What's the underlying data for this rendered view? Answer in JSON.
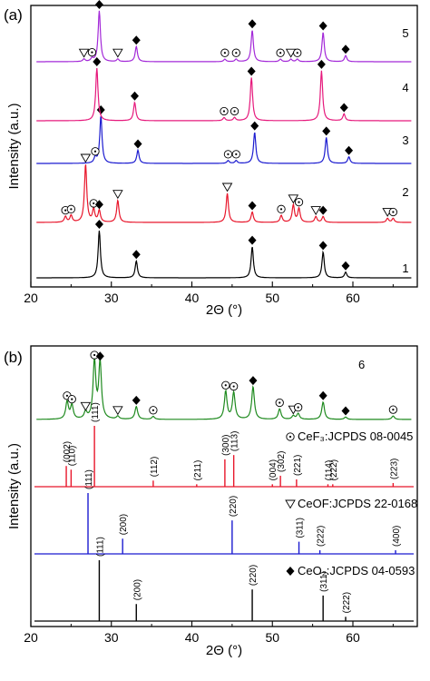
{
  "chart_data": [
    {
      "panel_label": "(a)",
      "type": "line",
      "xlabel": "2Θ (°)",
      "ylabel": "Intensity (a.u.)",
      "xlim": [
        20,
        68
      ],
      "x_ticks": [
        20,
        30,
        40,
        50,
        60
      ],
      "series": [
        {
          "name": "1",
          "color": "#000000",
          "peaks": [
            {
              "x": 28.5,
              "h": 1.0,
              "marker": "diamond"
            },
            {
              "x": 33.1,
              "h": 0.36,
              "marker": "diamond"
            },
            {
              "x": 47.5,
              "h": 0.66,
              "marker": "diamond"
            },
            {
              "x": 56.3,
              "h": 0.55,
              "marker": "diamond"
            },
            {
              "x": 59.1,
              "h": 0.12,
              "marker": "diamond"
            }
          ]
        },
        {
          "name": "2",
          "color": "#e8162b",
          "peaks": [
            {
              "x": 24.3,
              "h": 0.1,
              "marker": "circle-dot"
            },
            {
              "x": 25.0,
              "h": 0.12,
              "marker": "circle-dot"
            },
            {
              "x": 26.8,
              "h": 1.0,
              "marker": "triangle"
            },
            {
              "x": 27.8,
              "h": 0.22,
              "marker": "circle-dot"
            },
            {
              "x": 28.5,
              "h": 0.2,
              "marker": "diamond"
            },
            {
              "x": 30.8,
              "h": 0.38,
              "marker": "triangle"
            },
            {
              "x": 44.4,
              "h": 0.5,
              "marker": "triangle"
            },
            {
              "x": 47.5,
              "h": 0.18,
              "marker": "diamond"
            },
            {
              "x": 51.1,
              "h": 0.12,
              "marker": "circle-dot"
            },
            {
              "x": 52.6,
              "h": 0.3,
              "marker": "triangle"
            },
            {
              "x": 53.3,
              "h": 0.24,
              "marker": "circle-dot"
            },
            {
              "x": 55.4,
              "h": 0.1,
              "marker": "triangle"
            },
            {
              "x": 56.3,
              "h": 0.1,
              "marker": "diamond"
            },
            {
              "x": 64.3,
              "h": 0.07,
              "marker": "triangle"
            },
            {
              "x": 65.0,
              "h": 0.07,
              "marker": "circle-dot"
            }
          ]
        },
        {
          "name": "3",
          "color": "#1b1bd0",
          "peaks": [
            {
              "x": 28.0,
              "h": 0.12,
              "marker": "circle-dot"
            },
            {
              "x": 28.7,
              "h": 1.0,
              "marker": "diamond"
            },
            {
              "x": 33.3,
              "h": 0.28,
              "marker": "diamond"
            },
            {
              "x": 44.5,
              "h": 0.06,
              "marker": "circle-dot"
            },
            {
              "x": 45.5,
              "h": 0.06,
              "marker": "circle-dot"
            },
            {
              "x": 47.8,
              "h": 0.66,
              "marker": "diamond"
            },
            {
              "x": 56.7,
              "h": 0.55,
              "marker": "diamond"
            },
            {
              "x": 59.5,
              "h": 0.14,
              "marker": "diamond"
            }
          ]
        },
        {
          "name": "4",
          "color": "#e6197c",
          "peaks": [
            {
              "x": 28.2,
              "h": 1.0,
              "marker": "diamond"
            },
            {
              "x": 32.9,
              "h": 0.35,
              "marker": "diamond"
            },
            {
              "x": 44.0,
              "h": 0.06,
              "marker": "circle-dot"
            },
            {
              "x": 45.3,
              "h": 0.06,
              "marker": "circle-dot"
            },
            {
              "x": 47.4,
              "h": 0.82,
              "marker": "diamond"
            },
            {
              "x": 56.1,
              "h": 0.95,
              "marker": "diamond"
            },
            {
              "x": 58.9,
              "h": 0.13,
              "marker": "diamond"
            }
          ]
        },
        {
          "name": "5",
          "color": "#a329d8",
          "peaks": [
            {
              "x": 26.6,
              "h": 0.05,
              "marker": "triangle"
            },
            {
              "x": 27.6,
              "h": 0.06,
              "marker": "circle-dot"
            },
            {
              "x": 28.5,
              "h": 1.0,
              "marker": "diamond"
            },
            {
              "x": 30.8,
              "h": 0.05,
              "marker": "triangle"
            },
            {
              "x": 33.1,
              "h": 0.3,
              "marker": "diamond"
            },
            {
              "x": 44.1,
              "h": 0.05,
              "marker": "circle-dot"
            },
            {
              "x": 45.5,
              "h": 0.05,
              "marker": "circle-dot"
            },
            {
              "x": 47.5,
              "h": 0.62,
              "marker": "diamond"
            },
            {
              "x": 51.0,
              "h": 0.05,
              "marker": "circle-dot"
            },
            {
              "x": 52.3,
              "h": 0.05,
              "marker": "triangle"
            },
            {
              "x": 53.1,
              "h": 0.05,
              "marker": "circle-dot"
            },
            {
              "x": 56.3,
              "h": 0.58,
              "marker": "diamond"
            },
            {
              "x": 59.1,
              "h": 0.12,
              "marker": "diamond"
            }
          ]
        }
      ]
    },
    {
      "panel_label": "(b)",
      "type": "line",
      "xlabel": "2Θ (°)",
      "ylabel": "Intensity (a.u.)",
      "xlim": [
        20,
        68
      ],
      "x_ticks": [
        20,
        30,
        40,
        50,
        60
      ],
      "sample": {
        "name": "6",
        "color": "#1e8a1e",
        "peaks": [
          {
            "x": 24.5,
            "h": 0.3,
            "marker": "circle-dot"
          },
          {
            "x": 25.1,
            "h": 0.24,
            "marker": "circle-dot"
          },
          {
            "x": 26.8,
            "h": 0.12,
            "marker": "triangle"
          },
          {
            "x": 27.9,
            "h": 1.0,
            "marker": "circle-dot"
          },
          {
            "x": 28.6,
            "h": 0.98,
            "marker": "diamond"
          },
          {
            "x": 30.8,
            "h": 0.05,
            "marker": "triangle"
          },
          {
            "x": 33.1,
            "h": 0.22,
            "marker": "diamond"
          },
          {
            "x": 35.2,
            "h": 0.05,
            "marker": "circle-dot"
          },
          {
            "x": 44.2,
            "h": 0.48,
            "marker": "circle-dot"
          },
          {
            "x": 45.2,
            "h": 0.46,
            "marker": "circle-dot"
          },
          {
            "x": 47.6,
            "h": 0.56,
            "marker": "diamond"
          },
          {
            "x": 50.9,
            "h": 0.18,
            "marker": "circle-dot"
          },
          {
            "x": 52.6,
            "h": 0.06,
            "marker": "triangle"
          },
          {
            "x": 53.2,
            "h": 0.1,
            "marker": "circle-dot"
          },
          {
            "x": 56.3,
            "h": 0.3,
            "marker": "diamond"
          },
          {
            "x": 59.1,
            "h": 0.04,
            "marker": "diamond"
          },
          {
            "x": 65.0,
            "h": 0.06,
            "marker": "circle-dot"
          }
        ]
      },
      "references": [
        {
          "label": "CeF₃:JCPDS 08-0045",
          "marker": "circle-dot",
          "color": "#e8162b",
          "sticks": [
            {
              "x": 24.4,
              "h": 0.34,
              "hkl": "(002)"
            },
            {
              "x": 25.0,
              "h": 0.28,
              "hkl": "(110)"
            },
            {
              "x": 27.9,
              "h": 1.0,
              "hkl": "(111)"
            },
            {
              "x": 35.2,
              "h": 0.1,
              "hkl": "(112)"
            },
            {
              "x": 40.6,
              "h": 0.04,
              "hkl": "(211)"
            },
            {
              "x": 44.1,
              "h": 0.45,
              "hkl": "(300)"
            },
            {
              "x": 45.2,
              "h": 0.52,
              "hkl": "(113)"
            },
            {
              "x": 50.0,
              "h": 0.04,
              "hkl": "(004)"
            },
            {
              "x": 51.0,
              "h": 0.18,
              "hkl": "(302)"
            },
            {
              "x": 53.0,
              "h": 0.12,
              "hkl": "(221)"
            },
            {
              "x": 56.9,
              "h": 0.04,
              "hkl": "(114)"
            },
            {
              "x": 57.5,
              "h": 0.04,
              "hkl": "(222)"
            },
            {
              "x": 65.0,
              "h": 0.06,
              "hkl": "(223)"
            }
          ]
        },
        {
          "label": "CeOF:JCPDS 22-0168",
          "marker": "triangle",
          "color": "#1b1bd0",
          "sticks": [
            {
              "x": 27.1,
              "h": 1.0,
              "hkl": "(111)"
            },
            {
              "x": 31.4,
              "h": 0.25,
              "hkl": "(200)"
            },
            {
              "x": 45.0,
              "h": 0.55,
              "hkl": "(220)"
            },
            {
              "x": 53.3,
              "h": 0.2,
              "hkl": "(311)"
            },
            {
              "x": 55.9,
              "h": 0.06,
              "hkl": "(222)"
            },
            {
              "x": 65.3,
              "h": 0.06,
              "hkl": "(400)"
            }
          ]
        },
        {
          "label": "CeO₂:JCPDS 04-0593",
          "marker": "diamond",
          "color": "#000000",
          "sticks": [
            {
              "x": 28.5,
              "h": 1.0,
              "hkl": "(111)"
            },
            {
              "x": 33.1,
              "h": 0.28,
              "hkl": "(200)"
            },
            {
              "x": 47.5,
              "h": 0.52,
              "hkl": "(220)"
            },
            {
              "x": 56.3,
              "h": 0.42,
              "hkl": "(311)"
            },
            {
              "x": 59.1,
              "h": 0.07,
              "hkl": "(222)"
            }
          ]
        }
      ]
    }
  ]
}
